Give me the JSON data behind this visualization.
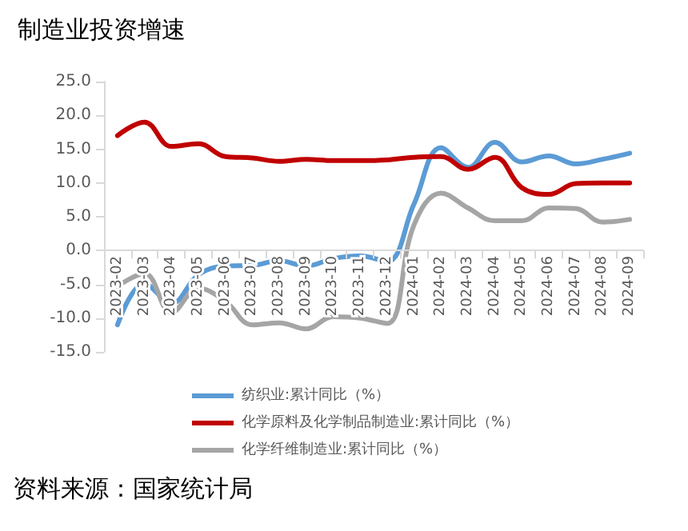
{
  "chart_data": {
    "type": "line",
    "title": "制造业投资增速",
    "categories": [
      "2023-02",
      "2023-03",
      "2023-04",
      "2023-05",
      "2023-06",
      "2023-07",
      "2023-08",
      "2023-09",
      "2023-10",
      "2023-11",
      "2023-12",
      "2024-01",
      "2024-02",
      "2024-03",
      "2024-04",
      "2024-05",
      "2024-06",
      "2024-07",
      "2024-08",
      "2024-09"
    ],
    "series": [
      {
        "name": "纺织业:累计同比（%）",
        "color": "#5b9bd5",
        "values": [
          -11.0,
          -4.9,
          -7.8,
          -3.6,
          -2.3,
          -2.2,
          -1.5,
          -2.3,
          -1.2,
          -0.8,
          -1.6,
          6.9,
          15.2,
          12.3,
          16.0,
          13.1,
          14.0,
          12.8,
          13.5,
          14.4
        ]
      },
      {
        "name": "化学原料及化学制品制造业:累计同比（%）",
        "color": "#c00000",
        "values": [
          17.0,
          19.0,
          15.4,
          15.8,
          13.9,
          13.7,
          13.2,
          13.5,
          13.3,
          13.3,
          13.4,
          13.8,
          13.9,
          12.0,
          13.8,
          9.3,
          8.3,
          9.9,
          10.0,
          10.0
        ]
      },
      {
        "name": "化学纤维制造业:累计同比（%）",
        "color": "#a5a5a5",
        "values": [
          -5.3,
          -3.4,
          -9.2,
          -5.6,
          -7.5,
          -11.0,
          -10.7,
          -11.6,
          -9.8,
          -10.0,
          -10.8,
          3.8,
          8.5,
          6.3,
          4.4,
          4.4,
          6.3,
          6.2,
          4.2,
          4.6
        ]
      }
    ],
    "ylim": [
      -15,
      25
    ],
    "yticks": [
      {
        "value": -15,
        "label": "-15.0"
      },
      {
        "value": -10,
        "label": "-10.0"
      },
      {
        "value": -5,
        "label": "-5.0"
      },
      {
        "value": 0,
        "label": "0.0"
      },
      {
        "value": 5,
        "label": "5.0"
      },
      {
        "value": 10,
        "label": "10.0"
      },
      {
        "value": 15,
        "label": "15.0"
      },
      {
        "value": 20,
        "label": "20.0"
      },
      {
        "value": 25,
        "label": "25.0"
      }
    ],
    "grid": false,
    "legend": "bottom",
    "marker": "none",
    "line_style": "solid",
    "annotations": [
      "资料来源：国家统计局"
    ]
  }
}
